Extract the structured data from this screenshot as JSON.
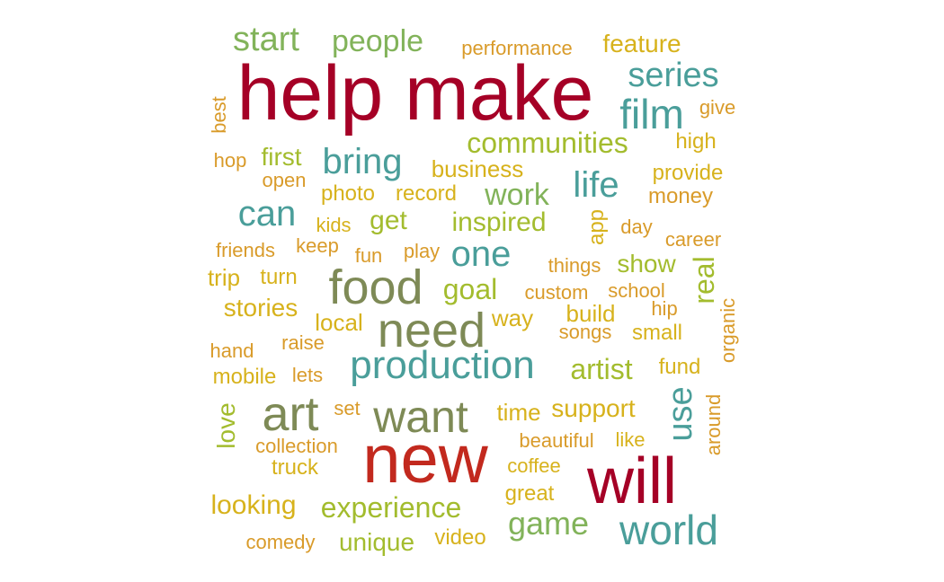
{
  "palette": {
    "crimson": "#A50026",
    "red": "#C2291E",
    "olive": "#7E8A56",
    "teal": "#4A9E9A",
    "green": "#82B35A",
    "lime": "#A3BC2E",
    "gold": "#D7B21C",
    "amber": "#D99B2A"
  },
  "words": [
    {
      "text": "help make",
      "color": "crimson"
    },
    {
      "text": "new",
      "color": "red"
    },
    {
      "text": "will",
      "color": "crimson"
    },
    {
      "text": "food",
      "color": "olive"
    },
    {
      "text": "need",
      "color": "olive"
    },
    {
      "text": "art",
      "color": "olive"
    },
    {
      "text": "want",
      "color": "olive"
    },
    {
      "text": "production",
      "color": "teal"
    },
    {
      "text": "world",
      "color": "teal"
    },
    {
      "text": "film",
      "color": "teal"
    },
    {
      "text": "series",
      "color": "teal"
    },
    {
      "text": "life",
      "color": "teal"
    },
    {
      "text": "can",
      "color": "teal"
    },
    {
      "text": "bring",
      "color": "teal"
    },
    {
      "text": "one",
      "color": "teal"
    },
    {
      "text": "use",
      "color": "teal"
    },
    {
      "text": "game",
      "color": "green"
    },
    {
      "text": "start",
      "color": "green"
    },
    {
      "text": "people",
      "color": "green"
    },
    {
      "text": "work",
      "color": "green"
    },
    {
      "text": "communities",
      "color": "lime"
    },
    {
      "text": "experience",
      "color": "lime"
    },
    {
      "text": "artist",
      "color": "lime"
    },
    {
      "text": "goal",
      "color": "lime"
    },
    {
      "text": "real",
      "color": "lime"
    },
    {
      "text": "inspired",
      "color": "lime"
    },
    {
      "text": "get",
      "color": "lime"
    },
    {
      "text": "first",
      "color": "lime"
    },
    {
      "text": "show",
      "color": "lime"
    },
    {
      "text": "unique",
      "color": "lime"
    },
    {
      "text": "love",
      "color": "lime"
    },
    {
      "text": "feature",
      "color": "gold"
    },
    {
      "text": "performance",
      "color": "amber"
    },
    {
      "text": "give",
      "color": "amber"
    },
    {
      "text": "high",
      "color": "gold"
    },
    {
      "text": "best",
      "color": "amber"
    },
    {
      "text": "hop",
      "color": "amber"
    },
    {
      "text": "open",
      "color": "amber"
    },
    {
      "text": "business",
      "color": "gold"
    },
    {
      "text": "provide",
      "color": "gold"
    },
    {
      "text": "money",
      "color": "amber"
    },
    {
      "text": "photo",
      "color": "gold"
    },
    {
      "text": "record",
      "color": "gold"
    },
    {
      "text": "kids",
      "color": "gold"
    },
    {
      "text": "app",
      "color": "gold"
    },
    {
      "text": "day",
      "color": "amber"
    },
    {
      "text": "career",
      "color": "amber"
    },
    {
      "text": "friends",
      "color": "amber"
    },
    {
      "text": "keep",
      "color": "amber"
    },
    {
      "text": "fun",
      "color": "amber"
    },
    {
      "text": "play",
      "color": "amber"
    },
    {
      "text": "things",
      "color": "amber"
    },
    {
      "text": "trip",
      "color": "gold"
    },
    {
      "text": "turn",
      "color": "gold"
    },
    {
      "text": "custom",
      "color": "amber"
    },
    {
      "text": "school",
      "color": "amber"
    },
    {
      "text": "stories",
      "color": "gold"
    },
    {
      "text": "local",
      "color": "gold"
    },
    {
      "text": "way",
      "color": "gold"
    },
    {
      "text": "build",
      "color": "gold"
    },
    {
      "text": "hip",
      "color": "amber"
    },
    {
      "text": "organic",
      "color": "amber"
    },
    {
      "text": "songs",
      "color": "amber"
    },
    {
      "text": "small",
      "color": "gold"
    },
    {
      "text": "hand",
      "color": "amber"
    },
    {
      "text": "raise",
      "color": "amber"
    },
    {
      "text": "mobile",
      "color": "gold"
    },
    {
      "text": "lets",
      "color": "amber"
    },
    {
      "text": "fund",
      "color": "gold"
    },
    {
      "text": "around",
      "color": "amber"
    },
    {
      "text": "set",
      "color": "amber"
    },
    {
      "text": "time",
      "color": "gold"
    },
    {
      "text": "support",
      "color": "gold"
    },
    {
      "text": "collection",
      "color": "amber"
    },
    {
      "text": "beautiful",
      "color": "amber"
    },
    {
      "text": "like",
      "color": "gold"
    },
    {
      "text": "truck",
      "color": "gold"
    },
    {
      "text": "coffee",
      "color": "gold"
    },
    {
      "text": "looking",
      "color": "gold"
    },
    {
      "text": "great",
      "color": "gold"
    },
    {
      "text": "comedy",
      "color": "amber"
    },
    {
      "text": "video",
      "color": "gold"
    }
  ]
}
